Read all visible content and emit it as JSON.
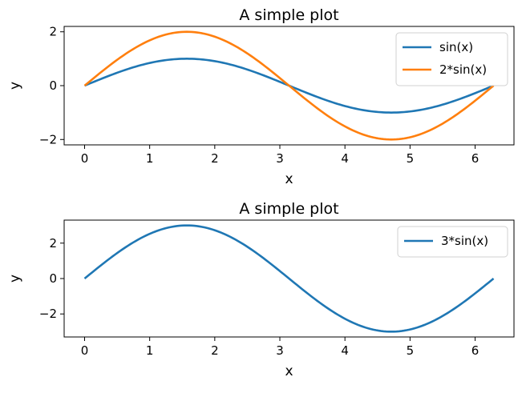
{
  "colors": {
    "blue": "#1f77b4",
    "orange": "#ff7f0e"
  },
  "chart_data": [
    {
      "type": "line",
      "title": "A simple plot",
      "xlabel": "x",
      "ylabel": "y",
      "xlim": [
        -0.314,
        6.597
      ],
      "ylim": [
        -2.2,
        2.2
      ],
      "xticks": [
        0,
        1,
        2,
        3,
        4,
        5,
        6
      ],
      "yticks": [
        -2,
        0,
        2
      ],
      "xtick_labels": [
        "0",
        "1",
        "2",
        "3",
        "4",
        "5",
        "6"
      ],
      "ytick_labels": [
        "−2",
        "0",
        "2"
      ],
      "grid": false,
      "legend_position": "top-right",
      "x_domain": [
        0,
        6.2832
      ],
      "series": [
        {
          "name": "sin(x)",
          "color": "#1f77b4",
          "amplitude": 1,
          "x": [
            0,
            0.7854,
            1.5708,
            2.3562,
            3.1416,
            3.927,
            4.7124,
            5.4978,
            6.2832
          ],
          "values": [
            0,
            0.71,
            1,
            0.71,
            0,
            -0.71,
            -1,
            -0.71,
            0
          ]
        },
        {
          "name": "2*sin(x)",
          "color": "#ff7f0e",
          "amplitude": 2,
          "x": [
            0,
            0.7854,
            1.5708,
            2.3562,
            3.1416,
            3.927,
            4.7124,
            5.4978,
            6.2832
          ],
          "values": [
            0,
            1.41,
            2,
            1.41,
            0,
            -1.41,
            -2,
            -1.41,
            0
          ]
        }
      ]
    },
    {
      "type": "line",
      "title": "A simple plot",
      "xlabel": "x",
      "ylabel": "y",
      "xlim": [
        -0.314,
        6.597
      ],
      "ylim": [
        -3.3,
        3.3
      ],
      "xticks": [
        0,
        1,
        2,
        3,
        4,
        5,
        6
      ],
      "yticks": [
        -2,
        0,
        2
      ],
      "xtick_labels": [
        "0",
        "1",
        "2",
        "3",
        "4",
        "5",
        "6"
      ],
      "ytick_labels": [
        "−2",
        "0",
        "2"
      ],
      "grid": false,
      "legend_position": "top-right",
      "x_domain": [
        0,
        6.2832
      ],
      "series": [
        {
          "name": "3*sin(x)",
          "color": "#1f77b4",
          "amplitude": 3,
          "x": [
            0,
            0.7854,
            1.5708,
            2.3562,
            3.1416,
            3.927,
            4.7124,
            5.4978,
            6.2832
          ],
          "values": [
            0,
            2.12,
            3,
            2.12,
            0,
            -2.12,
            -3,
            -2.12,
            0
          ]
        }
      ]
    }
  ]
}
